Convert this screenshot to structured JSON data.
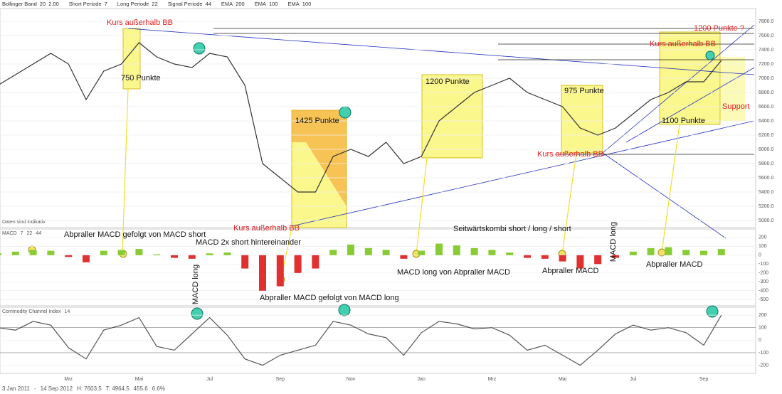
{
  "header": {
    "items": [
      {
        "label": "Bollinger Band",
        "params": [
          "20",
          "2.00"
        ],
        "color": "#e08020"
      },
      {
        "label": "Short Periode",
        "params": [
          "7"
        ],
        "color": "#333333"
      },
      {
        "label": "Long Periode",
        "params": [
          "22"
        ],
        "color": "#333333"
      },
      {
        "label": "Signal Periode",
        "params": [
          "44"
        ],
        "color": "#333333"
      },
      {
        "label": "EMA",
        "params": [
          "200"
        ],
        "color": "#9030a0"
      },
      {
        "label": "EMA",
        "params": [
          "100"
        ],
        "color": "#3070c0"
      },
      {
        "label": "EMA",
        "params": [
          "100"
        ],
        "color": "#c08040"
      }
    ]
  },
  "note": "Daten sind indikativ",
  "footer": {
    "start": "3 Jan 2011",
    "sep": "-",
    "end": "14 Sep 2012",
    "high": "H: 7603.5",
    "low": "T: 4964.5",
    "change": "455.6",
    "change_pct": "6.6%"
  },
  "chart_data": [
    {
      "type": "line",
      "categories": [
        null,
        null,
        null,
        null,
        "Mrz",
        null,
        null,
        null,
        "Mai",
        null,
        null,
        null,
        "Jul",
        null,
        null,
        null,
        "Sep",
        null,
        null,
        null,
        "Nov",
        null,
        null,
        null,
        "Jan",
        null,
        null,
        null,
        "Mrz",
        null,
        null,
        null,
        "Mai",
        null,
        null,
        null,
        "Jul",
        null,
        null,
        null,
        "Sep",
        null
      ],
      "series": [
        {
          "color": "#333333",
          "values": [
            6900,
            7050,
            7200,
            7350,
            7200,
            6700,
            7100,
            7200,
            7500,
            7300,
            7200,
            7150,
            7350,
            7300,
            6900,
            5800,
            5600,
            5400,
            5400,
            5900,
            6000,
            5900,
            6100,
            5800,
            5900,
            6400,
            6600,
            6800,
            6900,
            7000,
            6800,
            6700,
            6600,
            6300,
            6200,
            6300,
            6500,
            6700,
            6800,
            6950,
            6950,
            7250
          ]
        }
      ],
      "ylim": [
        4900,
        7980
      ],
      "yticks": [
        {
          "value": 5000,
          "label": "5000.0"
        },
        {
          "value": 5200,
          "label": "5200.0"
        },
        {
          "value": 5400,
          "label": "5400.0"
        },
        {
          "value": 5600,
          "label": "5600.0"
        },
        {
          "value": 5800,
          "label": "5800.0"
        },
        {
          "value": 6000,
          "label": "6000.0"
        },
        {
          "value": 6200,
          "label": "6200.0"
        },
        {
          "value": 6400,
          "label": "6400.0"
        },
        {
          "value": 6600,
          "label": "6600.0"
        },
        {
          "value": 6800,
          "label": "6800.0"
        },
        {
          "value": 7000,
          "label": "7000.0"
        },
        {
          "value": 7200,
          "label": "7200.0"
        },
        {
          "value": 7400,
          "label": "7400.0"
        },
        {
          "value": 7600,
          "label": "7600.0"
        },
        {
          "value": 7800,
          "label": "7800.0"
        }
      ],
      "grid": true,
      "annotations": [
        "Kurs außerhalb BB",
        "750 Punkte",
        "1425 Punkte",
        "Kurs außerhalb BB",
        "1200 Punkte",
        "975 Punkte",
        "Kurs außerhalb BB",
        "1100 Punkte",
        "1200 Punkte ?",
        "Kurs außerhalb BB",
        "Support"
      ]
    },
    {
      "type": "bar",
      "title": "MACD",
      "params": [
        "7",
        "22",
        "44"
      ],
      "series": [
        {
          "color": "#88cc33",
          "negative_color": "#e03030",
          "values": [
            20,
            40,
            60,
            50,
            -20,
            -80,
            50,
            60,
            70,
            10,
            -30,
            -40,
            20,
            30,
            -150,
            -400,
            -350,
            -200,
            -150,
            60,
            120,
            80,
            60,
            -40,
            50,
            130,
            110,
            80,
            60,
            30,
            -30,
            -40,
            -70,
            -150,
            -100,
            -30,
            40,
            80,
            90,
            60,
            50,
            70
          ]
        }
      ],
      "ylim": [
        -570,
        295
      ],
      "yticks": [
        200,
        100,
        0,
        -100,
        -200,
        -300,
        -400,
        -500
      ],
      "grid": true,
      "annotations": [
        "Abpraller MACD gefolgt von MACD short",
        "MACD 2x short hintereinander",
        "MACD long",
        "Abpraller MACD gefolgt von MACD long",
        "Seitwärtskombi short / long / short",
        "MACD long von Abpraller MACD",
        "Abpraller MACD",
        "MACD long",
        "Abpraller MACD"
      ]
    },
    {
      "type": "line",
      "title": "Commodity Channel Index",
      "params": [
        "14"
      ],
      "series": [
        {
          "color": "#555555",
          "values": [
            100,
            80,
            150,
            120,
            -60,
            -150,
            80,
            120,
            180,
            -50,
            -80,
            50,
            180,
            40,
            -150,
            -200,
            -120,
            -80,
            -40,
            150,
            120,
            50,
            20,
            -120,
            60,
            150,
            130,
            90,
            100,
            40,
            -80,
            -40,
            -120,
            -200,
            -80,
            50,
            120,
            80,
            100,
            60,
            -40,
            200
          ]
        }
      ],
      "ylim": [
        -265,
        263
      ],
      "yticks": [
        200,
        100,
        0,
        -100,
        -200
      ],
      "grid": true
    }
  ]
}
